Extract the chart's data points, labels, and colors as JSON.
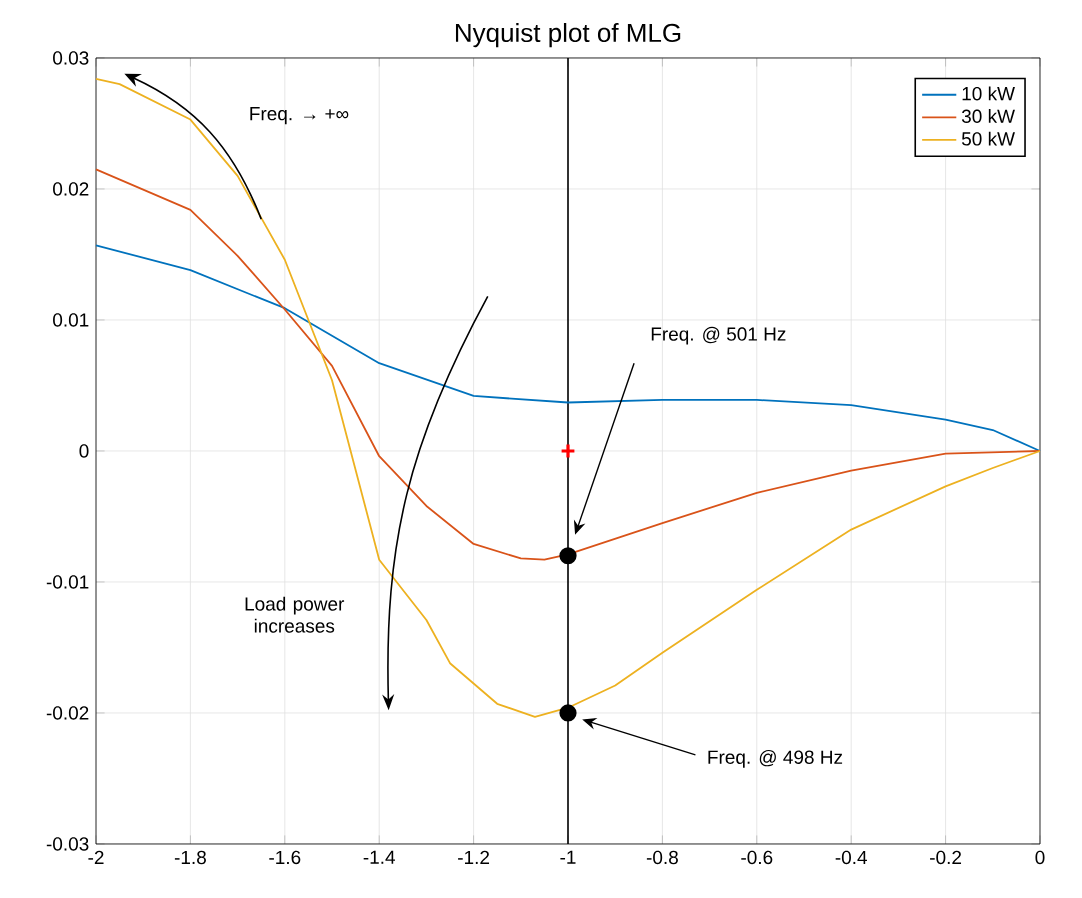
{
  "chart_data": {
    "type": "line",
    "title": "Nyquist plot of MLG",
    "xlim": [
      -2,
      0
    ],
    "ylim": [
      -0.03,
      0.03
    ],
    "xticks": [
      -2,
      -1.8,
      -1.6,
      -1.4,
      -1.2,
      -1,
      -0.8,
      -0.6,
      -0.4,
      -0.2,
      0
    ],
    "yticks": [
      -0.03,
      -0.02,
      -0.01,
      0,
      0.01,
      0.02,
      0.03
    ],
    "grid": true,
    "legend": "top right",
    "marker": "none",
    "line_style": "solid",
    "series": [
      {
        "name": "10 kW",
        "color": "#0072bd",
        "x": [
          -2,
          -1.8,
          -1.6,
          -1.4,
          -1.2,
          -1.0,
          -0.8,
          -0.6,
          -0.4,
          -0.2,
          -0.1,
          0
        ],
        "values": [
          0.0157,
          0.0138,
          0.0109,
          0.0067,
          0.0042,
          0.0037,
          0.0039,
          0.0039,
          0.0035,
          0.0024,
          0.0016,
          0
        ]
      },
      {
        "name": "30 kW",
        "color": "#d95319",
        "x": [
          -2,
          -1.8,
          -1.7,
          -1.6,
          -1.5,
          -1.4,
          -1.3,
          -1.2,
          -1.1,
          -1.05,
          -1.0,
          -0.8,
          -0.6,
          -0.4,
          -0.2,
          0
        ],
        "values": [
          0.0215,
          0.0184,
          0.0149,
          0.0108,
          0.0065,
          -0.0004,
          -0.0042,
          -0.0071,
          -0.0082,
          -0.0083,
          -0.0079,
          -0.0055,
          -0.0032,
          -0.0015,
          -0.0002,
          0
        ]
      },
      {
        "name": "50 kW",
        "color": "#edb120",
        "x": [
          -2,
          -1.95,
          -1.8,
          -1.7,
          -1.6,
          -1.5,
          -1.4,
          -1.3,
          -1.25,
          -1.15,
          -1.07,
          -1.0,
          -0.9,
          -0.8,
          -0.6,
          -0.4,
          -0.2,
          -0.1,
          0
        ],
        "values": [
          0.0284,
          0.028,
          0.0253,
          0.021,
          0.0146,
          0.0054,
          -0.0083,
          -0.0129,
          -0.0162,
          -0.0193,
          -0.0203,
          -0.0196,
          -0.0179,
          -0.0154,
          -0.0106,
          -0.006,
          -0.0027,
          -0.0013,
          0
        ]
      },
      {
        "type": "scatter",
        "color": "#ff0000",
        "marker": "cross",
        "x": [
          -1
        ],
        "values": [
          0
        ]
      },
      {
        "type": "scatter",
        "color": "#000000",
        "marker": "circle",
        "x": [
          -1,
          -1
        ],
        "values": [
          -0.008,
          -0.02
        ]
      }
    ],
    "ref_lines": [
      {
        "axis": "x",
        "value": -1,
        "color": "#000000",
        "line_style": "solid"
      }
    ],
    "annotations": [
      "Freq. → +∞",
      "Load power increases",
      "Freq. @ 501 Hz",
      "Freq. @ 498 Hz"
    ]
  }
}
